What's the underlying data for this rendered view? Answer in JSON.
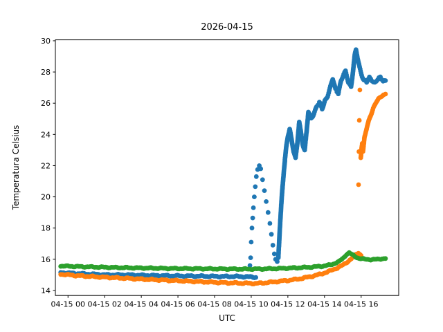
{
  "chart_data": {
    "type": "scatter",
    "title": "2026-04-15",
    "xlabel": "UTC",
    "ylabel": "Temperatura Celsius",
    "grid": false,
    "legend": "none",
    "xlim_hours": [
      -0.69,
      18.05
    ],
    "ylim": [
      13.68,
      30.06
    ],
    "x_ticks": [
      {
        "pos": 0,
        "label": "04-15 00"
      },
      {
        "pos": 2,
        "label": "04-15 02"
      },
      {
        "pos": 4,
        "label": "04-15 04"
      },
      {
        "pos": 6,
        "label": "04-15 06"
      },
      {
        "pos": 8,
        "label": "04-15 08"
      },
      {
        "pos": 10,
        "label": "04-15 10"
      },
      {
        "pos": 12,
        "label": "04-15 12"
      },
      {
        "pos": 14,
        "label": "04-15 14"
      },
      {
        "pos": 16,
        "label": "04-15 16"
      }
    ],
    "y_ticks": [
      {
        "pos": 14,
        "label": "14"
      },
      {
        "pos": 16,
        "label": "16"
      },
      {
        "pos": 18,
        "label": "18"
      },
      {
        "pos": 20,
        "label": "20"
      },
      {
        "pos": 22,
        "label": "22"
      },
      {
        "pos": 24,
        "label": "24"
      },
      {
        "pos": 26,
        "label": "26"
      },
      {
        "pos": 28,
        "label": "28"
      },
      {
        "pos": 30,
        "label": "30"
      }
    ],
    "series": [
      {
        "name": "blue",
        "color": "#1f77b4",
        "segments": [
          {
            "mode": "dense",
            "jitter": 0.03,
            "points": [
              [
                -0.4,
                15.15
              ],
              [
                0.3,
                15.1
              ],
              [
                1.2,
                15.05
              ],
              [
                2.2,
                15.0
              ],
              [
                3.2,
                15.0
              ],
              [
                4.2,
                14.97
              ],
              [
                5.2,
                14.95
              ],
              [
                6.2,
                14.93
              ],
              [
                7.2,
                14.92
              ],
              [
                8.2,
                14.9
              ],
              [
                9.2,
                14.9
              ],
              [
                9.8,
                14.88
              ],
              [
                10.25,
                14.85
              ]
            ]
          },
          {
            "mode": "sparse",
            "points": [
              [
                9.93,
                15.6
              ],
              [
                9.97,
                16.1
              ],
              [
                10.0,
                17.1
              ],
              [
                10.04,
                18.0
              ],
              [
                10.08,
                18.65
              ],
              [
                10.12,
                19.3
              ],
              [
                10.17,
                20.0
              ],
              [
                10.22,
                20.65
              ],
              [
                10.28,
                21.3
              ],
              [
                10.35,
                21.75
              ],
              [
                10.44,
                22.0
              ]
            ]
          },
          {
            "mode": "sparse",
            "points": [
              [
                10.52,
                21.8
              ],
              [
                10.62,
                21.1
              ],
              [
                10.72,
                20.4
              ],
              [
                10.82,
                19.7
              ],
              [
                10.92,
                19.0
              ],
              [
                11.02,
                18.3
              ],
              [
                11.1,
                17.6
              ],
              [
                11.18,
                16.9
              ],
              [
                11.26,
                16.35
              ],
              [
                11.33,
                16.0
              ],
              [
                11.42,
                15.85
              ]
            ]
          },
          {
            "mode": "dense",
            "jitter": 0.0,
            "points": [
              [
                11.48,
                16.1
              ],
              [
                11.52,
                17.0
              ],
              [
                11.56,
                17.9
              ],
              [
                11.6,
                18.7
              ],
              [
                11.64,
                19.5
              ],
              [
                11.68,
                20.2
              ],
              [
                11.73,
                20.9
              ],
              [
                11.78,
                21.6
              ],
              [
                11.84,
                22.3
              ]
            ]
          },
          {
            "mode": "dense",
            "jitter": 0.07,
            "points": [
              [
                11.84,
                22.3
              ],
              [
                11.92,
                23.2
              ],
              [
                12.0,
                23.9
              ],
              [
                12.1,
                24.4
              ],
              [
                12.22,
                23.6
              ],
              [
                12.32,
                22.9
              ],
              [
                12.42,
                22.4
              ],
              [
                12.52,
                23.4
              ],
              [
                12.62,
                24.8
              ],
              [
                12.72,
                24.1
              ],
              [
                12.82,
                23.4
              ],
              [
                12.92,
                23.0
              ],
              [
                13.02,
                24.1
              ],
              [
                13.12,
                25.4
              ],
              [
                13.27,
                25.0
              ],
              [
                13.42,
                25.4
              ],
              [
                13.57,
                25.8
              ],
              [
                13.72,
                26.0
              ],
              [
                13.87,
                25.6
              ],
              [
                14.02,
                26.2
              ],
              [
                14.17,
                26.5
              ],
              [
                14.32,
                27.0
              ],
              [
                14.45,
                27.5
              ],
              [
                14.6,
                26.9
              ],
              [
                14.75,
                26.7
              ],
              [
                14.9,
                27.4
              ],
              [
                15.05,
                27.8
              ],
              [
                15.15,
                28.0
              ],
              [
                15.3,
                27.4
              ],
              [
                15.45,
                27.1
              ],
              [
                15.55,
                28.0
              ],
              [
                15.65,
                29.0
              ],
              [
                15.72,
                29.35
              ],
              [
                15.82,
                28.8
              ],
              [
                15.92,
                28.3
              ],
              [
                16.02,
                27.9
              ],
              [
                16.15,
                27.5
              ],
              [
                16.3,
                27.3
              ],
              [
                16.45,
                27.6
              ],
              [
                16.6,
                27.5
              ],
              [
                16.75,
                27.35
              ],
              [
                16.9,
                27.5
              ],
              [
                17.05,
                27.6
              ],
              [
                17.2,
                27.45
              ],
              [
                17.33,
                27.5
              ]
            ]
          }
        ]
      },
      {
        "name": "orange",
        "color": "#ff7f0e",
        "segments": [
          {
            "mode": "dense",
            "jitter": 0.03,
            "points": [
              [
                -0.4,
                15.05
              ],
              [
                0.5,
                14.95
              ],
              [
                1.5,
                14.88
              ],
              [
                2.5,
                14.82
              ],
              [
                3.5,
                14.76
              ],
              [
                4.5,
                14.7
              ],
              [
                5.5,
                14.65
              ],
              [
                6.5,
                14.6
              ],
              [
                7.5,
                14.55
              ],
              [
                8.5,
                14.5
              ],
              [
                9.5,
                14.47
              ],
              [
                10.3,
                14.45
              ],
              [
                11.0,
                14.52
              ],
              [
                11.8,
                14.62
              ],
              [
                12.5,
                14.72
              ],
              [
                13.2,
                14.88
              ],
              [
                13.8,
                15.05
              ],
              [
                14.3,
                15.25
              ],
              [
                14.7,
                15.45
              ],
              [
                15.0,
                15.62
              ],
              [
                15.3,
                15.88
              ],
              [
                15.55,
                16.12
              ],
              [
                15.72,
                16.32
              ],
              [
                15.85,
                16.4
              ],
              [
                16.0,
                16.28
              ]
            ]
          },
          {
            "mode": "sparse",
            "points": [
              [
                15.86,
                20.78
              ],
              [
                15.88,
                22.9
              ],
              [
                15.9,
                24.9
              ],
              [
                15.93,
                26.85
              ]
            ]
          },
          {
            "mode": "dense",
            "jitter": 0.04,
            "points": [
              [
                15.98,
                22.55
              ],
              [
                16.02,
                23.1
              ],
              [
                16.06,
                23.45
              ],
              [
                16.1,
                22.9
              ],
              [
                16.14,
                23.3
              ],
              [
                16.18,
                23.75
              ],
              [
                16.24,
                24.05
              ],
              [
                16.32,
                24.45
              ],
              [
                16.42,
                24.9
              ],
              [
                16.54,
                25.3
              ],
              [
                16.66,
                25.7
              ],
              [
                16.8,
                26.0
              ],
              [
                16.95,
                26.25
              ],
              [
                17.1,
                26.45
              ],
              [
                17.22,
                26.55
              ],
              [
                17.33,
                26.62
              ]
            ]
          }
        ]
      },
      {
        "name": "green",
        "color": "#2ca02c",
        "segments": [
          {
            "mode": "dense",
            "jitter": 0.025,
            "points": [
              [
                -0.4,
                15.57
              ],
              [
                0.6,
                15.53
              ],
              [
                1.6,
                15.5
              ],
              [
                2.6,
                15.47
              ],
              [
                3.6,
                15.45
              ],
              [
                4.6,
                15.43
              ],
              [
                5.6,
                15.41
              ],
              [
                6.6,
                15.4
              ],
              [
                7.6,
                15.39
              ],
              [
                8.6,
                15.38
              ],
              [
                9.6,
                15.37
              ],
              [
                10.6,
                15.38
              ],
              [
                11.6,
                15.41
              ],
              [
                12.6,
                15.46
              ],
              [
                13.3,
                15.5
              ],
              [
                13.9,
                15.56
              ],
              [
                14.4,
                15.66
              ],
              [
                14.8,
                15.86
              ],
              [
                15.05,
                16.1
              ],
              [
                15.2,
                16.32
              ],
              [
                15.35,
                16.42
              ],
              [
                15.5,
                16.3
              ],
              [
                15.7,
                16.15
              ],
              [
                15.9,
                16.06
              ],
              [
                16.2,
                16.0
              ],
              [
                16.6,
                15.98
              ],
              [
                16.9,
                16.0
              ],
              [
                17.15,
                16.04
              ],
              [
                17.33,
                16.05
              ]
            ]
          }
        ]
      }
    ]
  }
}
